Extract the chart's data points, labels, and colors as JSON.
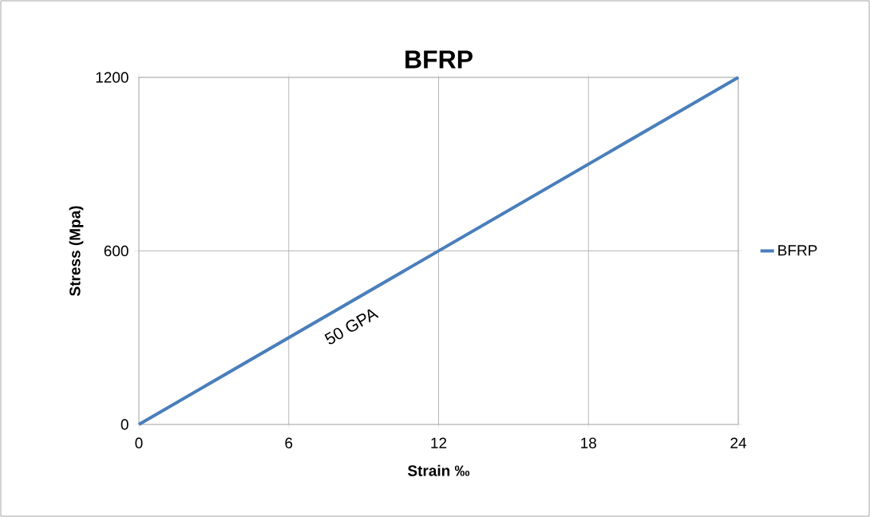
{
  "chart_data": {
    "type": "line",
    "title": "BFRP",
    "xlabel": "Strain ‰",
    "ylabel": "Stress (Mpa)",
    "x": [
      0,
      24
    ],
    "series": [
      {
        "name": "BFRP",
        "color": "#4a7ebb",
        "values": [
          0,
          1200
        ]
      }
    ],
    "xlim": [
      0,
      24
    ],
    "ylim": [
      0,
      1200
    ],
    "xticks": [
      0,
      6,
      12,
      18,
      24
    ],
    "yticks": [
      0,
      600,
      1200
    ],
    "annotations": [
      "50 GPA"
    ],
    "grid": true,
    "legend": "right",
    "marker": "none",
    "line_style": "solid"
  }
}
